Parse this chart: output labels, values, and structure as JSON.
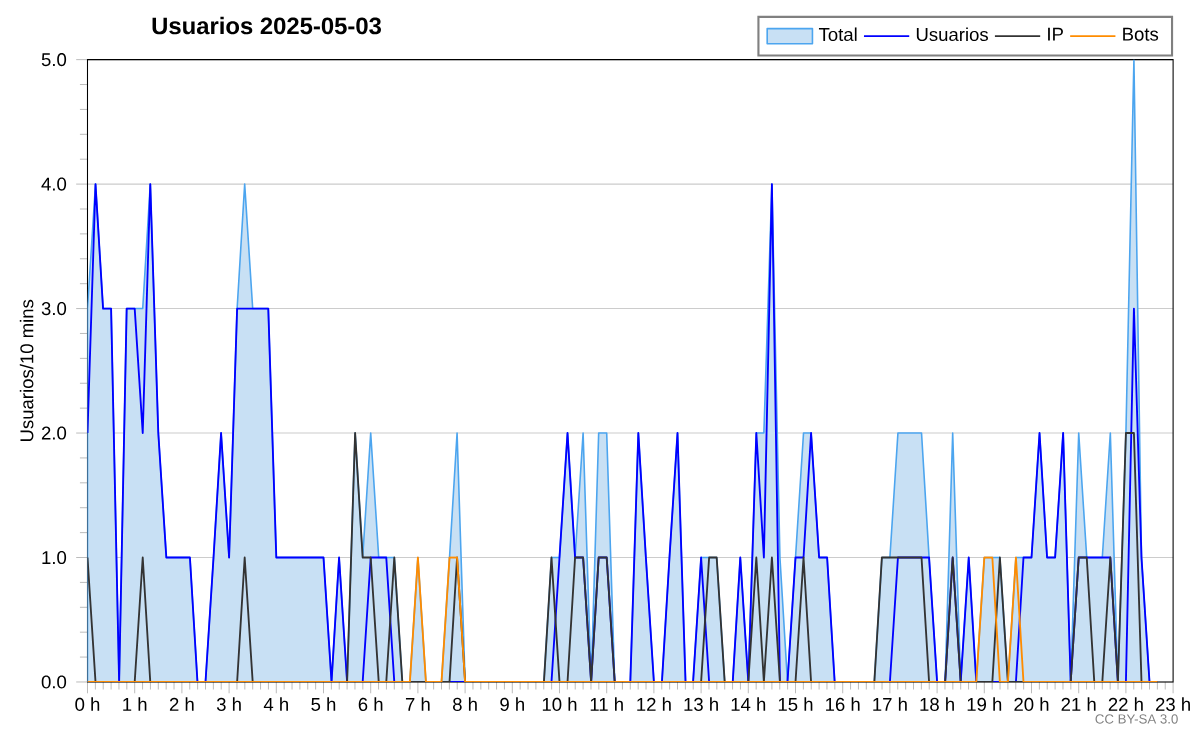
{
  "chart_data": {
    "type": "line",
    "title": "Usuarios  2025-05-03",
    "ylabel": "Usuarios/10 mins",
    "x": [
      0,
      0.17,
      0.33,
      0.5,
      0.67,
      0.83,
      1,
      1.17,
      1.33,
      1.5,
      1.67,
      1.83,
      2,
      2.17,
      2.33,
      2.5,
      2.67,
      2.83,
      3,
      3.17,
      3.33,
      3.5,
      3.67,
      3.83,
      4,
      4.17,
      4.33,
      4.5,
      4.67,
      4.83,
      5,
      5.17,
      5.33,
      5.5,
      5.67,
      5.83,
      6,
      6.17,
      6.33,
      6.5,
      6.67,
      6.83,
      7,
      7.17,
      7.33,
      7.5,
      7.67,
      7.83,
      8,
      8.17,
      8.33,
      8.5,
      8.67,
      8.83,
      9,
      9.17,
      9.33,
      9.5,
      9.67,
      9.83,
      10,
      10.17,
      10.33,
      10.5,
      10.67,
      10.83,
      11,
      11.17,
      11.33,
      11.5,
      11.67,
      11.83,
      12,
      12.17,
      12.33,
      12.5,
      12.67,
      12.83,
      13,
      13.17,
      13.33,
      13.5,
      13.67,
      13.83,
      14,
      14.17,
      14.33,
      14.5,
      14.67,
      14.83,
      15,
      15.17,
      15.33,
      15.5,
      15.67,
      15.83,
      16,
      16.17,
      16.33,
      16.5,
      16.67,
      16.83,
      17,
      17.17,
      17.33,
      17.5,
      17.67,
      17.83,
      18,
      18.17,
      18.33,
      18.5,
      18.67,
      18.83,
      19,
      19.17,
      19.33,
      19.5,
      19.67,
      19.83,
      20,
      20.17,
      20.33,
      20.5,
      20.67,
      20.83,
      21,
      21.17,
      21.33,
      21.5,
      21.67,
      21.83,
      22,
      22.17,
      22.33,
      22.5,
      22.67
    ],
    "series": [
      {
        "name": "Total",
        "type": "area",
        "color": "#c8e0f4",
        "values": [
          3,
          4,
          3,
          3,
          0,
          3,
          3,
          3,
          4,
          2,
          1,
          1,
          1,
          1,
          0,
          0,
          1,
          2,
          1,
          3,
          4,
          3,
          3,
          3,
          1,
          1,
          1,
          1,
          1,
          1,
          1,
          0,
          1,
          0,
          2,
          1,
          2,
          1,
          1,
          1,
          0,
          0,
          1,
          0,
          0,
          0,
          1,
          2,
          0,
          0,
          0,
          0,
          0,
          0,
          0,
          0,
          0,
          0,
          0,
          1,
          1,
          2,
          1,
          2,
          0,
          2,
          2,
          0,
          0,
          0,
          2,
          1,
          0,
          0,
          1,
          2,
          0,
          0,
          1,
          1,
          1,
          0,
          0,
          1,
          0,
          2,
          2,
          4,
          1,
          0,
          1,
          2,
          2,
          1,
          1,
          0,
          0,
          0,
          0,
          0,
          0,
          1,
          1,
          2,
          2,
          2,
          2,
          1,
          0,
          0,
          2,
          0,
          1,
          0,
          1,
          1,
          1,
          0,
          1,
          1,
          1,
          2,
          1,
          1,
          2,
          0,
          2,
          1,
          1,
          1,
          2,
          0,
          2,
          5,
          1,
          0,
          0
        ]
      },
      {
        "name": "Usuarios",
        "color": "#0000ff",
        "values": [
          2,
          4,
          3,
          3,
          0,
          3,
          3,
          2,
          4,
          2,
          1,
          1,
          1,
          1,
          0,
          0,
          1,
          2,
          1,
          3,
          3,
          3,
          3,
          3,
          1,
          1,
          1,
          1,
          1,
          1,
          1,
          0,
          1,
          0,
          0,
          0,
          1,
          1,
          1,
          0,
          0,
          0,
          0,
          0,
          0,
          0,
          0,
          0,
          0,
          0,
          0,
          0,
          0,
          0,
          0,
          0,
          0,
          0,
          0,
          0,
          1,
          2,
          1,
          1,
          0,
          1,
          1,
          0,
          0,
          0,
          2,
          1,
          0,
          0,
          1,
          2,
          0,
          0,
          1,
          0,
          0,
          0,
          0,
          1,
          0,
          2,
          1,
          4,
          0,
          0,
          1,
          1,
          2,
          1,
          1,
          0,
          0,
          0,
          0,
          0,
          0,
          0,
          0,
          1,
          1,
          1,
          1,
          1,
          0,
          0,
          1,
          0,
          1,
          0,
          0,
          0,
          0,
          0,
          0,
          1,
          1,
          2,
          1,
          1,
          2,
          0,
          1,
          1,
          1,
          1,
          1,
          0,
          0,
          3,
          1,
          0,
          0
        ]
      },
      {
        "name": "IP",
        "color": "#333333",
        "values": [
          1,
          0,
          0,
          0,
          0,
          0,
          0,
          1,
          0,
          0,
          0,
          0,
          0,
          0,
          0,
          0,
          0,
          0,
          0,
          0,
          1,
          0,
          0,
          0,
          0,
          0,
          0,
          0,
          0,
          0,
          0,
          0,
          0,
          0,
          2,
          1,
          1,
          0,
          0,
          1,
          0,
          0,
          0,
          0,
          0,
          0,
          0,
          1,
          0,
          0,
          0,
          0,
          0,
          0,
          0,
          0,
          0,
          0,
          0,
          1,
          0,
          0,
          1,
          1,
          0,
          1,
          1,
          0,
          0,
          0,
          0,
          0,
          0,
          0,
          0,
          0,
          0,
          0,
          0,
          1,
          1,
          0,
          0,
          0,
          0,
          1,
          0,
          1,
          0,
          0,
          0,
          1,
          0,
          0,
          0,
          0,
          0,
          0,
          0,
          0,
          0,
          1,
          1,
          1,
          1,
          1,
          1,
          0,
          0,
          0,
          1,
          0,
          0,
          0,
          0,
          0,
          1,
          0,
          0,
          0,
          0,
          0,
          0,
          0,
          0,
          0,
          1,
          1,
          0,
          0,
          1,
          0,
          2,
          2,
          0,
          0,
          0
        ]
      },
      {
        "name": "Bots",
        "color": "#ff8c00",
        "values": [
          0,
          0,
          0,
          0,
          0,
          0,
          0,
          0,
          0,
          0,
          0,
          0,
          0,
          0,
          0,
          0,
          0,
          0,
          0,
          0,
          0,
          0,
          0,
          0,
          0,
          0,
          0,
          0,
          0,
          0,
          0,
          0,
          0,
          0,
          0,
          0,
          0,
          0,
          0,
          0,
          0,
          0,
          1,
          0,
          0,
          0,
          1,
          1,
          0,
          0,
          0,
          0,
          0,
          0,
          0,
          0,
          0,
          0,
          0,
          0,
          0,
          0,
          0,
          0,
          0,
          0,
          0,
          0,
          0,
          0,
          0,
          0,
          0,
          0,
          0,
          0,
          0,
          0,
          0,
          0,
          0,
          0,
          0,
          0,
          0,
          0,
          0,
          0,
          0,
          0,
          0,
          0,
          0,
          0,
          0,
          0,
          0,
          0,
          0,
          0,
          0,
          0,
          0,
          0,
          0,
          0,
          0,
          0,
          0,
          0,
          0,
          0,
          0,
          0,
          1,
          1,
          0,
          0,
          1,
          0,
          0,
          0,
          0,
          0,
          0,
          0,
          0,
          0,
          0,
          0,
          0,
          0,
          0,
          0,
          0,
          0,
          0
        ]
      }
    ],
    "xlim": [
      0,
      23
    ],
    "xticks": [
      {
        "value": 0,
        "label": "0 h"
      },
      {
        "value": 1,
        "label": "1 h"
      },
      {
        "value": 2,
        "label": "2 h"
      },
      {
        "value": 3,
        "label": "3 h"
      },
      {
        "value": 4,
        "label": "4 h"
      },
      {
        "value": 5,
        "label": "5 h"
      },
      {
        "value": 6,
        "label": "6 h"
      },
      {
        "value": 7,
        "label": "7 h"
      },
      {
        "value": 8,
        "label": "8 h"
      },
      {
        "value": 9,
        "label": "9 h"
      },
      {
        "value": 10,
        "label": "10 h"
      },
      {
        "value": 11,
        "label": "11 h"
      },
      {
        "value": 12,
        "label": "12 h"
      },
      {
        "value": 13,
        "label": "13 h"
      },
      {
        "value": 14,
        "label": "14 h"
      },
      {
        "value": 15,
        "label": "15 h"
      },
      {
        "value": 16,
        "label": "16 h"
      },
      {
        "value": 17,
        "label": "17 h"
      },
      {
        "value": 18,
        "label": "18 h"
      },
      {
        "value": 19,
        "label": "19 h"
      },
      {
        "value": 20,
        "label": "20 h"
      },
      {
        "value": 21,
        "label": "21 h"
      },
      {
        "value": 22,
        "label": "22 h"
      },
      {
        "value": 23,
        "label": "23 h"
      }
    ],
    "ylim": [
      0,
      5
    ],
    "yticks": [
      {
        "value": 0,
        "label": "0.0"
      },
      {
        "value": 1,
        "label": "1.0"
      },
      {
        "value": 2,
        "label": "2.0"
      },
      {
        "value": 3,
        "label": "3.0"
      },
      {
        "value": 4,
        "label": "4.0"
      },
      {
        "value": 5,
        "label": "5.0"
      }
    ],
    "grid": "y",
    "legend": "top right",
    "annotations": [
      "CC BY-SA 3.0"
    ]
  }
}
